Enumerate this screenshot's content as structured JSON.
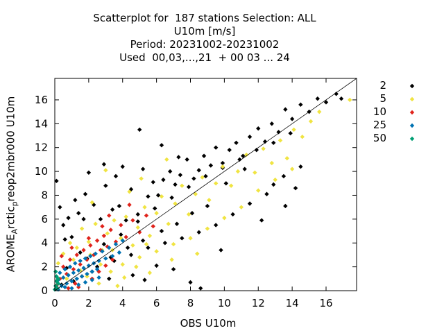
{
  "title_lines": [
    "Scatterplot for  187 stations Selection: ALL",
    "U10m [m/s]",
    "Period: 20231002-20231002",
    "Used  00,03,...,21  + 00 03 ... 24"
  ],
  "xlabel": "OBS U10m",
  "ylabel": {
    "main": "AROME",
    "sub1": "A",
    "mid": "rctic",
    "sub2": "p",
    "rest": "reop2mbr000 U10m"
  },
  "chart_data": {
    "type": "scatter",
    "title": "Scatterplot for  187 stations Selection: ALL / U10m [m/s] / Period: 20231002-20231002 / Used  00,03,...,21  + 00 03 ... 24",
    "xlabel": "OBS U10m",
    "ylabel": "AROME_Arctic_preop2mbr000 U10m",
    "xlim": [
      0,
      17.8
    ],
    "ylim": [
      0,
      17.8
    ],
    "xticks": [
      0,
      2,
      4,
      6,
      8,
      10,
      12,
      14,
      16
    ],
    "yticks": [
      0,
      2,
      4,
      6,
      8,
      10,
      12,
      14,
      16
    ],
    "grid": false,
    "reference_line": "y = x",
    "legend_position": "right",
    "series": [
      {
        "name": "2",
        "color": "#000000",
        "points": [
          [
            0.1,
            9.2
          ],
          [
            0.3,
            7.0
          ],
          [
            0.5,
            5.5
          ],
          [
            0.8,
            6.1
          ],
          [
            1.0,
            4.5
          ],
          [
            1.2,
            7.6
          ],
          [
            1.4,
            6.5
          ],
          [
            1.8,
            8.1
          ],
          [
            2.0,
            9.9
          ],
          [
            2.3,
            7.2
          ],
          [
            2.7,
            6.0
          ],
          [
            3.0,
            8.8
          ],
          [
            3.4,
            6.8
          ],
          [
            3.8,
            7.1
          ],
          [
            4.2,
            5.9
          ],
          [
            4.5,
            8.5
          ],
          [
            4.9,
            6.4
          ],
          [
            5.2,
            10.2
          ],
          [
            5.5,
            7.9
          ],
          [
            5.8,
            9.1
          ],
          [
            6.1,
            8.0
          ],
          [
            6.4,
            9.3
          ],
          [
            6.8,
            10.0
          ],
          [
            7.1,
            8.9
          ],
          [
            7.4,
            9.7
          ],
          [
            7.8,
            11.0
          ],
          [
            8.2,
            9.4
          ],
          [
            8.5,
            10.1
          ],
          [
            8.8,
            11.3
          ],
          [
            9.2,
            10.5
          ],
          [
            9.5,
            12.0
          ],
          [
            9.9,
            10.7
          ],
          [
            10.3,
            11.8
          ],
          [
            10.7,
            12.4
          ],
          [
            11.1,
            11.3
          ],
          [
            11.5,
            12.9
          ],
          [
            12.0,
            13.6
          ],
          [
            12.4,
            12.5
          ],
          [
            12.8,
            14.0
          ],
          [
            13.2,
            13.3
          ],
          [
            13.6,
            15.2
          ],
          [
            14.0,
            14.4
          ],
          [
            14.5,
            15.6
          ],
          [
            15.0,
            15.0
          ],
          [
            15.5,
            16.1
          ],
          [
            16.0,
            15.8
          ],
          [
            16.6,
            16.5
          ],
          [
            16.9,
            16.1
          ],
          [
            1.5,
            3.2
          ],
          [
            2.5,
            2.0
          ],
          [
            3.5,
            2.5
          ],
          [
            4.5,
            3.0
          ],
          [
            5.5,
            3.6
          ],
          [
            6.5,
            4.0
          ],
          [
            7.5,
            4.4
          ],
          [
            8.5,
            4.9
          ],
          [
            9.5,
            5.5
          ],
          [
            10.5,
            6.4
          ],
          [
            11.5,
            7.3
          ],
          [
            12.5,
            8.1
          ],
          [
            13.5,
            9.6
          ],
          [
            14.5,
            10.4
          ],
          [
            6.0,
            2.1
          ],
          [
            7.0,
            1.8
          ],
          [
            8.0,
            0.7
          ],
          [
            8.6,
            0.2
          ],
          [
            4.6,
            1.3
          ],
          [
            5.3,
            0.9
          ],
          [
            3.2,
            1.0
          ],
          [
            9.8,
            3.4
          ],
          [
            12.2,
            5.9
          ],
          [
            13.6,
            7.1
          ],
          [
            14.2,
            8.6
          ],
          [
            12.9,
            8.9
          ],
          [
            11.2,
            10.2
          ],
          [
            10.1,
            9.0
          ],
          [
            9.0,
            7.1
          ],
          [
            8.1,
            6.5
          ],
          [
            7.2,
            5.6
          ],
          [
            6.3,
            5.0
          ],
          [
            5.2,
            4.2
          ],
          [
            4.3,
            3.6
          ],
          [
            3.3,
            2.8
          ],
          [
            2.2,
            1.6
          ],
          [
            1.1,
            0.8
          ],
          [
            0.4,
            0.5
          ],
          [
            0.7,
            1.9
          ],
          [
            1.9,
            2.7
          ],
          [
            2.9,
            3.9
          ],
          [
            3.9,
            4.7
          ],
          [
            4.9,
            5.8
          ],
          [
            5.9,
            6.9
          ],
          [
            6.9,
            7.8
          ],
          [
            7.9,
            8.7
          ],
          [
            8.9,
            9.6
          ],
          [
            9.9,
            10.3
          ],
          [
            10.9,
            11.0
          ],
          [
            11.9,
            11.8
          ],
          [
            12.9,
            12.4
          ],
          [
            13.9,
            13.2
          ],
          [
            5.0,
            13.5
          ],
          [
            4.0,
            10.4
          ],
          [
            2.9,
            10.6
          ],
          [
            6.3,
            12.2
          ],
          [
            7.3,
            11.2
          ],
          [
            3.6,
            9.6
          ],
          [
            1.7,
            6.0
          ],
          [
            0.6,
            4.3
          ]
        ]
      },
      {
        "name": "5",
        "color": "#f0e442",
        "points": [
          [
            0.2,
            2.3
          ],
          [
            0.5,
            3.1
          ],
          [
            0.9,
            4.0
          ],
          [
            1.3,
            3.6
          ],
          [
            1.6,
            5.2
          ],
          [
            2.0,
            4.1
          ],
          [
            2.4,
            5.6
          ],
          [
            2.8,
            3.4
          ],
          [
            3.1,
            4.8
          ],
          [
            3.5,
            5.9
          ],
          [
            3.9,
            4.4
          ],
          [
            4.2,
            6.2
          ],
          [
            4.6,
            3.8
          ],
          [
            4.9,
            5.3
          ],
          [
            5.3,
            7.0
          ],
          [
            5.6,
            4.6
          ],
          [
            6.0,
            6.5
          ],
          [
            6.3,
            7.9
          ],
          [
            6.7,
            5.6
          ],
          [
            7.1,
            7.3
          ],
          [
            7.5,
            8.8
          ],
          [
            7.9,
            6.4
          ],
          [
            8.3,
            8.1
          ],
          [
            8.7,
            9.5
          ],
          [
            9.1,
            7.6
          ],
          [
            9.5,
            9.0
          ],
          [
            9.9,
            10.4
          ],
          [
            10.4,
            8.8
          ],
          [
            10.8,
            10.0
          ],
          [
            11.3,
            11.4
          ],
          [
            11.8,
            9.9
          ],
          [
            12.3,
            11.9
          ],
          [
            12.8,
            10.7
          ],
          [
            13.3,
            12.6
          ],
          [
            13.7,
            11.1
          ],
          [
            14.1,
            13.5
          ],
          [
            14.6,
            12.9
          ],
          [
            15.1,
            14.2
          ],
          [
            15.6,
            15.0
          ],
          [
            17.4,
            16.0
          ],
          [
            3.0,
            10.1
          ],
          [
            2.2,
            7.4
          ],
          [
            4.4,
            8.3
          ],
          [
            5.1,
            9.4
          ],
          [
            6.6,
            11.0
          ],
          [
            1.9,
            1.2
          ],
          [
            2.6,
            0.6
          ],
          [
            3.3,
            1.6
          ],
          [
            4.0,
            2.2
          ],
          [
            5.0,
            2.8
          ],
          [
            6.0,
            3.3
          ],
          [
            7.0,
            3.9
          ],
          [
            8.0,
            4.4
          ],
          [
            9.0,
            5.2
          ],
          [
            10.0,
            6.1
          ],
          [
            11.0,
            7.0
          ],
          [
            12.0,
            8.4
          ],
          [
            13.0,
            9.3
          ],
          [
            14.0,
            10.2
          ],
          [
            3.7,
            0.4
          ],
          [
            5.6,
            1.5
          ],
          [
            6.9,
            2.6
          ],
          [
            8.4,
            3.1
          ],
          [
            2.1,
            3.0
          ],
          [
            2.7,
            2.2
          ],
          [
            3.4,
            3.4
          ],
          [
            4.1,
            1.1
          ],
          [
            4.8,
            2.0
          ],
          [
            5.4,
            3.9
          ],
          [
            0.7,
            1.0
          ],
          [
            1.1,
            2.6
          ],
          [
            1.5,
            1.7
          ]
        ]
      },
      {
        "name": "10",
        "color": "#e0231b",
        "points": [
          [
            0.1,
            0.4
          ],
          [
            0.3,
            1.0
          ],
          [
            0.5,
            2.0
          ],
          [
            0.7,
            1.4
          ],
          [
            0.9,
            2.6
          ],
          [
            1.1,
            1.8
          ],
          [
            1.3,
            3.0
          ],
          [
            1.5,
            2.2
          ],
          [
            1.7,
            3.4
          ],
          [
            1.9,
            2.6
          ],
          [
            2.1,
            3.8
          ],
          [
            2.3,
            3.0
          ],
          [
            2.5,
            4.2
          ],
          [
            2.7,
            3.4
          ],
          [
            2.9,
            4.6
          ],
          [
            3.1,
            3.7
          ],
          [
            3.3,
            5.1
          ],
          [
            3.6,
            4.1
          ],
          [
            3.9,
            5.5
          ],
          [
            4.2,
            4.5
          ],
          [
            4.6,
            5.9
          ],
          [
            5.0,
            4.9
          ],
          [
            5.4,
            6.3
          ],
          [
            5.8,
            5.4
          ],
          [
            2.2,
            1.0
          ],
          [
            2.6,
            1.6
          ],
          [
            3.0,
            2.1
          ],
          [
            3.4,
            2.6
          ],
          [
            1.2,
            0.6
          ],
          [
            1.6,
            1.2
          ],
          [
            0.8,
            0.2
          ],
          [
            1.0,
            3.6
          ],
          [
            3.2,
            6.3
          ],
          [
            4.4,
            7.2
          ],
          [
            2.0,
            4.4
          ],
          [
            1.4,
            0.3
          ],
          [
            0.4,
            2.9
          ],
          [
            2.8,
            5.4
          ]
        ]
      },
      {
        "name": "25",
        "color": "#0072b2",
        "points": [
          [
            0.1,
            0.2
          ],
          [
            0.2,
            0.9
          ],
          [
            0.3,
            1.5
          ],
          [
            0.4,
            0.4
          ],
          [
            0.5,
            1.1
          ],
          [
            0.6,
            1.8
          ],
          [
            0.7,
            0.6
          ],
          [
            0.8,
            1.3
          ],
          [
            0.9,
            2.0
          ],
          [
            1.0,
            0.8
          ],
          [
            1.1,
            1.5
          ],
          [
            1.2,
            2.3
          ],
          [
            1.3,
            1.0
          ],
          [
            1.4,
            1.7
          ],
          [
            1.5,
            2.5
          ],
          [
            1.6,
            1.2
          ],
          [
            1.7,
            1.9
          ],
          [
            1.8,
            2.7
          ],
          [
            1.9,
            1.4
          ],
          [
            2.0,
            2.1
          ],
          [
            2.1,
            2.9
          ],
          [
            2.2,
            1.6
          ],
          [
            2.3,
            2.3
          ],
          [
            2.4,
            3.1
          ],
          [
            2.5,
            1.8
          ],
          [
            2.6,
            2.5
          ],
          [
            2.8,
            3.3
          ],
          [
            3.0,
            2.7
          ],
          [
            3.2,
            3.6
          ],
          [
            3.4,
            2.9
          ],
          [
            3.6,
            3.9
          ],
          [
            3.8,
            3.2
          ],
          [
            4.0,
            4.2
          ],
          [
            0.2,
            0.1
          ],
          [
            0.6,
            0.3
          ],
          [
            1.0,
            0.2
          ],
          [
            1.4,
            0.5
          ],
          [
            1.8,
            0.7
          ],
          [
            2.2,
            0.9
          ],
          [
            2.6,
            1.1
          ]
        ]
      },
      {
        "name": "50",
        "color": "#009e73",
        "points": [
          [
            0.0,
            0.1
          ],
          [
            0.05,
            0.4
          ],
          [
            0.1,
            0.8
          ],
          [
            0.15,
            0.2
          ],
          [
            0.2,
            0.6
          ],
          [
            0.1,
            1.2
          ],
          [
            0.05,
            1.6
          ],
          [
            0.2,
            1.0
          ]
        ]
      }
    ]
  }
}
